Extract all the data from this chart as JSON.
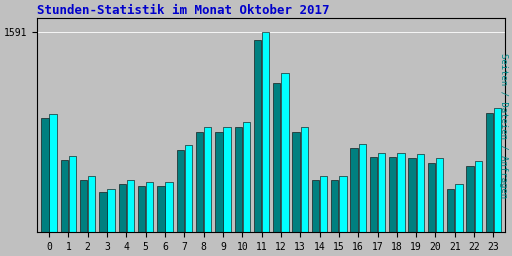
{
  "title": "Stunden-Statistik im Monat Oktober 2017",
  "ylabel_right": "Seiten / Dateien / Anfragen",
  "x_labels": [
    "0",
    "1",
    "2",
    "3",
    "4",
    "5",
    "6",
    "7",
    "8",
    "9",
    "10",
    "11",
    "12",
    "13",
    "14",
    "15",
    "16",
    "17",
    "18",
    "19",
    "20",
    "21",
    "22",
    "23"
  ],
  "ytick_val": 1591,
  "ytick_label": "1591",
  "bg_color": "#c0c0c0",
  "bar_cyan": "#00ffff",
  "bar_dark": "#008080",
  "title_color": "#0000cc",
  "right_label_color": "#008888",
  "values_front": [
    1310,
    1165,
    1095,
    1050,
    1080,
    1075,
    1075,
    1200,
    1265,
    1265,
    1280,
    1591,
    1450,
    1265,
    1095,
    1095,
    1205,
    1175,
    1175,
    1170,
    1155,
    1065,
    1145,
    1330
  ],
  "values_back": [
    1295,
    1150,
    1080,
    1038,
    1065,
    1060,
    1060,
    1183,
    1248,
    1248,
    1263,
    1565,
    1415,
    1248,
    1080,
    1080,
    1190,
    1160,
    1160,
    1155,
    1140,
    1050,
    1130,
    1313
  ],
  "ylim_min": 900,
  "ylim_max": 1640,
  "figsize": [
    5.12,
    2.56
  ],
  "dpi": 100
}
